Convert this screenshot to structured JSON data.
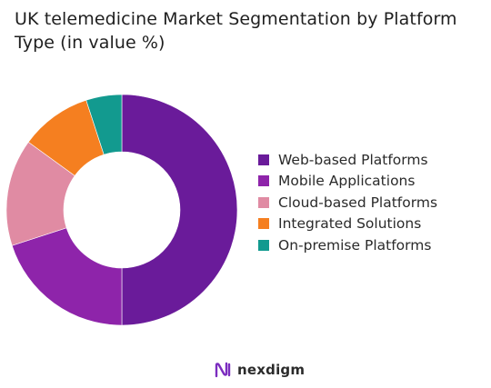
{
  "chart_data": {
    "type": "pie",
    "variant": "donut",
    "title": "UK telemedicine Market Segmentation by Platform Type (in value %)",
    "categories": [
      "Web-based Platforms",
      "Mobile Applications",
      "Cloud-based Platforms",
      "Integrated Solutions",
      "On-premise Platforms"
    ],
    "values": [
      50,
      20,
      15,
      10,
      5
    ],
    "colors": [
      "#6a1b9a",
      "#8e24aa",
      "#e08ba3",
      "#f57f20",
      "#129a8f"
    ],
    "legend_position": "right"
  },
  "branding": {
    "logo_text": "nexdigm",
    "logo_color": "#7b2cbf"
  }
}
